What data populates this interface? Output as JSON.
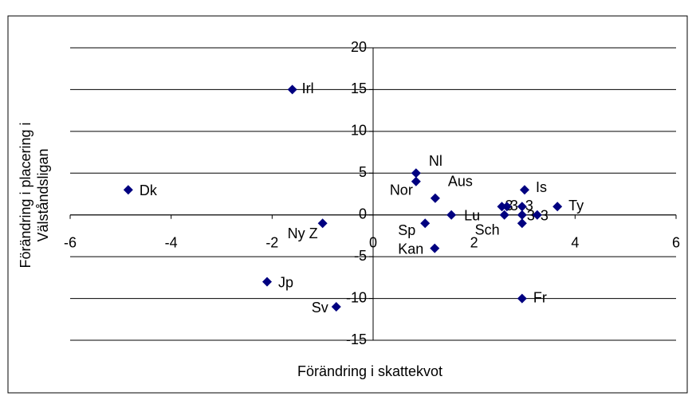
{
  "chart_data": {
    "type": "scatter",
    "xlabel": "Förändring i skattekvot",
    "ylabel": [
      "Förändring i placering i",
      "Välståndsligan"
    ],
    "xlim": [
      -6,
      6
    ],
    "xticks": [
      -6,
      -4,
      -2,
      0,
      2,
      4,
      6
    ],
    "ylim": [
      -15,
      20
    ],
    "yticks": [
      -15,
      -10,
      -5,
      0,
      5,
      10,
      15,
      20
    ],
    "grid": true,
    "color": "#000080",
    "x": [
      -1.6,
      -4.85,
      -1.0,
      -2.1,
      -0.73,
      0.85,
      0.85,
      1.23,
      1.03,
      1.55,
      1.22,
      2.55,
      2.65,
      2.6,
      2.95,
      2.95,
      2.95,
      3.0,
      3.25,
      3.65,
      2.95
    ],
    "values": [
      15,
      3,
      -1,
      -8,
      -11,
      5,
      4,
      2,
      -1,
      0,
      -4,
      1,
      1,
      0,
      1,
      0,
      -1,
      3,
      0,
      1,
      -10
    ],
    "labels": [
      "Irl",
      "Dk",
      "Ny Z",
      "Jp",
      "Sv",
      "Nl",
      "Nor",
      "Aus",
      "Sp",
      "Lu",
      "Kan",
      "3",
      "3",
      "Sch",
      "3",
      "3",
      null,
      "Is",
      "3",
      "Ty",
      "Fr"
    ]
  }
}
